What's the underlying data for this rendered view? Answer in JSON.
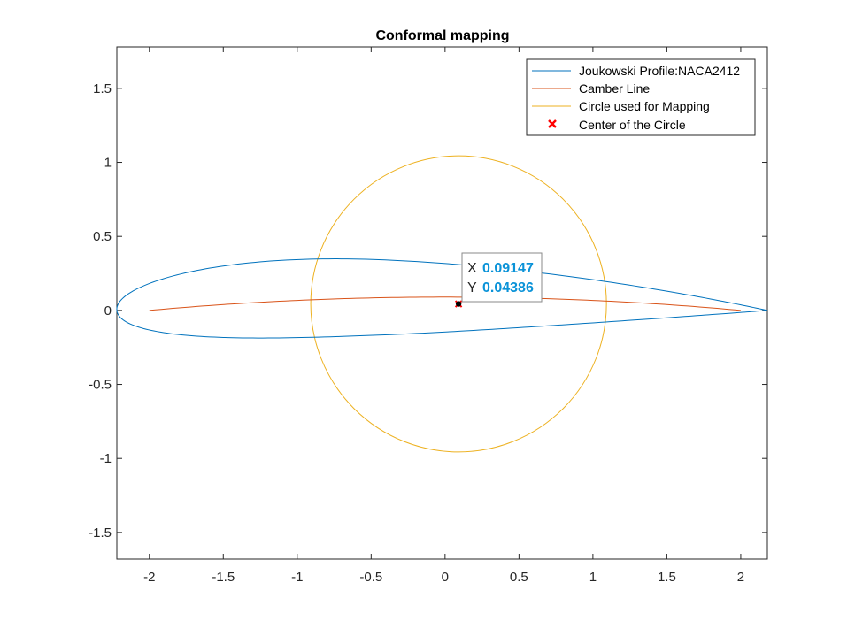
{
  "chart_data": {
    "type": "line",
    "title": "Conformal mapping",
    "xlabel": "",
    "ylabel": "",
    "xlim": [
      -2.22,
      2.18
    ],
    "ylim": [
      -1.68,
      1.78
    ],
    "x_ticks": [
      -2,
      -1.5,
      -1,
      -0.5,
      0,
      0.5,
      1,
      1.5,
      2
    ],
    "y_ticks": [
      -1.5,
      -1,
      -0.5,
      0,
      0.5,
      1,
      1.5
    ],
    "grid": false,
    "legend_position": "top-right",
    "airfoil": {
      "chord_start": -2.22,
      "chord_end": 2.18,
      "max_thickness": 0.12,
      "max_camber": 0.02,
      "camber_position": 0.4
    },
    "camber_line": {
      "x_start": -2.0,
      "x_end": 2.0,
      "max_camber_y": 0.09
    },
    "circle": {
      "center_x": 0.09147,
      "center_y": 0.04386,
      "radius": 1.0
    },
    "series": [
      {
        "name": "Joukowski Profile:NACA2412",
        "color": "#0072bd",
        "kind": "line"
      },
      {
        "name": "Camber Line",
        "color": "#d95319",
        "kind": "line"
      },
      {
        "name": "Circle used for Mapping",
        "color": "#edb120",
        "kind": "line"
      },
      {
        "name": "Center of the Circle",
        "color": "#ff0000",
        "kind": "marker"
      }
    ],
    "datatip": {
      "x_label": "X",
      "y_label": "Y",
      "x_value": "0.09147",
      "y_value": "0.04386"
    }
  }
}
